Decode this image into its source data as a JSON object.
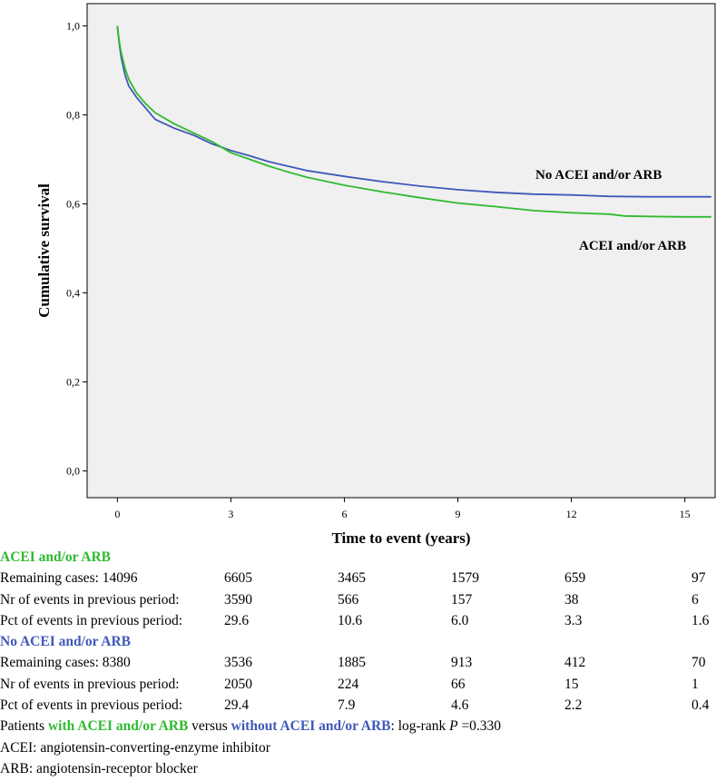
{
  "chart_data": {
    "type": "line",
    "title": "",
    "xlabel": "Time to event (years)",
    "ylabel": "Cumulative survival",
    "xlim": [
      -0.8,
      15.8
    ],
    "ylim": [
      -0.06,
      1.05
    ],
    "xticks": [
      0,
      3,
      6,
      9,
      12,
      15
    ],
    "xtick_labels": [
      "0",
      "3",
      "6",
      "9",
      "12",
      "15"
    ],
    "yticks": [
      0.0,
      0.2,
      0.4,
      0.6,
      0.8,
      1.0
    ],
    "ytick_labels": [
      "0,0",
      "0,2",
      "0,4",
      "0,6",
      "0,8",
      "1,0"
    ],
    "grid": false,
    "background": "#f0f0f0",
    "series": [
      {
        "name": "No ACEI and/or ARB",
        "label": "No ACEI and/or ARB",
        "color": "#3f58b8",
        "x": [
          0,
          0.05,
          0.1,
          0.2,
          0.3,
          0.5,
          0.75,
          1.0,
          1.5,
          2.0,
          2.5,
          3.0,
          3.5,
          4.0,
          4.5,
          5.0,
          6.0,
          7.0,
          8.0,
          9.0,
          10.0,
          11.0,
          12.0,
          13.0,
          14.0,
          15.0,
          15.7
        ],
        "values": [
          1.0,
          0.96,
          0.93,
          0.89,
          0.865,
          0.84,
          0.815,
          0.79,
          0.77,
          0.755,
          0.735,
          0.72,
          0.708,
          0.695,
          0.685,
          0.675,
          0.662,
          0.65,
          0.64,
          0.632,
          0.626,
          0.622,
          0.62,
          0.617,
          0.616,
          0.616,
          0.616
        ]
      },
      {
        "name": "ACEI and/or ARB",
        "label": "ACEI and/or ARB",
        "color": "#2fba2f",
        "x": [
          0,
          0.05,
          0.1,
          0.2,
          0.3,
          0.5,
          0.75,
          1.0,
          1.5,
          2.0,
          2.5,
          3.0,
          3.5,
          4.0,
          4.5,
          5.0,
          6.0,
          7.0,
          8.0,
          9.0,
          10.0,
          11.0,
          12.0,
          13.0,
          13.4,
          14.0,
          15.0,
          15.7
        ],
        "values": [
          1.0,
          0.965,
          0.94,
          0.905,
          0.88,
          0.85,
          0.825,
          0.805,
          0.78,
          0.76,
          0.74,
          0.715,
          0.7,
          0.685,
          0.672,
          0.66,
          0.642,
          0.627,
          0.614,
          0.602,
          0.594,
          0.585,
          0.58,
          0.577,
          0.573,
          0.572,
          0.571,
          0.571
        ]
      }
    ]
  },
  "risk_table": {
    "acei": {
      "group_label": "ACEI and/or ARB",
      "rows": [
        {
          "label": "Remaining cases: 14096",
          "values": [
            "6605",
            "3465",
            "1579",
            "659",
            "97"
          ]
        },
        {
          "label": "Nr of events in previous period:",
          "values": [
            "3590",
            "566",
            "157",
            "38",
            "6"
          ]
        },
        {
          "label": "Pct of events in previous period:",
          "values": [
            "29.6",
            "10.6",
            "6.0",
            "3.3",
            "1.6"
          ]
        }
      ]
    },
    "no_acei": {
      "group_label": "No ACEI and/or ARB",
      "rows": [
        {
          "label": "Remaining cases: 8380",
          "values": [
            "3536",
            "1885",
            "913",
            "412",
            "70"
          ]
        },
        {
          "label": "Nr of events in previous period:",
          "values": [
            "2050",
            "224",
            "66",
            "15",
            "1"
          ]
        },
        {
          "label": "Pct of events in previous period:",
          "values": [
            "29.4",
            "7.9",
            "4.6",
            "2.2",
            "0.4"
          ]
        }
      ]
    }
  },
  "footnotes": {
    "logrank": {
      "prefix": "Patients ",
      "with_group": "with ACEI and/or ARB",
      "versus": " versus ",
      "without_group": "without ACEI and/or ARB",
      "stat_prefix": ": log-rank ",
      "p_symbol": "P",
      "p_value": " =0.330"
    },
    "acei_def": "ACEI: angiotensin-converting-enzyme inhibitor",
    "arb_def": "ARB: angiotensin-receptor blocker"
  },
  "colors": {
    "acei": "#2fba2f",
    "no_acei": "#3f58b8",
    "plot_background": "#f0f0f0"
  }
}
